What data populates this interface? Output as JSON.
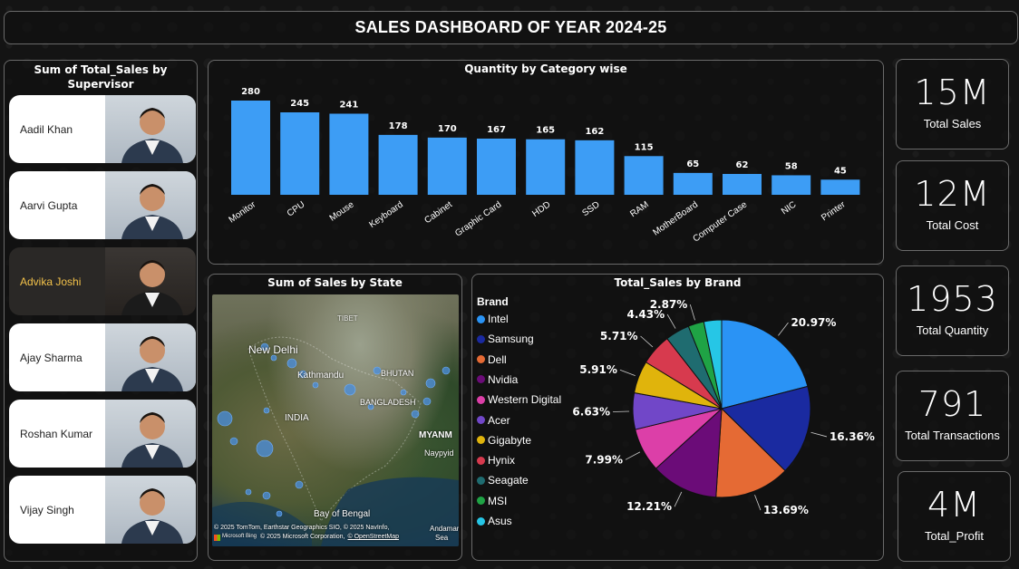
{
  "header": {
    "title": "SALES DASHBOARD OF YEAR 2024-25"
  },
  "supervisors": {
    "title": "Sum of Total_Sales by Supervisor",
    "items": [
      {
        "name": "Aadil Khan",
        "selected": false
      },
      {
        "name": "Aarvi Gupta",
        "selected": false
      },
      {
        "name": "Advika Joshi",
        "selected": true
      },
      {
        "name": "Ajay Sharma",
        "selected": false
      },
      {
        "name": "Roshan Kumar",
        "selected": false
      },
      {
        "name": "Vijay Singh",
        "selected": false
      }
    ]
  },
  "category_chart": {
    "title": "Quantity by Category wise",
    "bar_color": "#3d9df5"
  },
  "map": {
    "title": "Sum of Sales by State",
    "labels": {
      "tibet": "TIBET",
      "new_delhi": "New Delhi",
      "kathmandu": "Kathmandu",
      "bhutan": "BHUTAN",
      "bangladesh": "BANGLADESH",
      "india": "INDIA",
      "myanmar": "MYANM",
      "naypyida": "Naypyid",
      "bay": "Bay of Bengal",
      "andaman": "Andaman",
      "sea": "Sea"
    },
    "attribution_1": "© 2025 TomTom, Earthstar Geographics SIO, © 2025 NavInfo,",
    "attribution_2": "© 2025 Microsoft Corporation,",
    "attribution_link": "© OpenStreetMap",
    "microsoft_logo_text": "Microsoft Bing"
  },
  "brand_chart": {
    "title": "Total_Sales by Brand",
    "legend_title": "Brand"
  },
  "kpis": [
    {
      "value": "15M",
      "label": "Total Sales"
    },
    {
      "value": "12M",
      "label": "Total Cost"
    },
    {
      "value": "1953",
      "label": "Total Quantity"
    },
    {
      "value": "791",
      "label": "Total Transactions"
    },
    {
      "value": "4M",
      "label": "Total_Profit"
    }
  ],
  "chart_data": [
    {
      "type": "bar",
      "title": "Quantity by Category wise",
      "categories": [
        "Monitor",
        "CPU",
        "Mouse",
        "Keyboard",
        "Cabinet",
        "Graphic Card",
        "HDD",
        "SSD",
        "RAM",
        "MotherBoard",
        "Computer Case",
        "NIC",
        "Printer"
      ],
      "values": [
        280,
        245,
        241,
        178,
        170,
        167,
        165,
        162,
        115,
        65,
        62,
        58,
        45
      ],
      "data_labels": [
        "280",
        "245",
        "241",
        "178",
        "170",
        "167",
        "165",
        "162",
        "115",
        "65",
        "62",
        "58",
        "45"
      ],
      "ylim": [
        0,
        280
      ],
      "grid": false,
      "color": "#3d9df5"
    },
    {
      "type": "pie",
      "title": "Total_Sales by Brand",
      "legend_title": "Brand",
      "legend_position": "left",
      "series": [
        {
          "name": "Intel",
          "value": 20.97,
          "label": "20.97%",
          "color": "#2a93f5"
        },
        {
          "name": "Samsung",
          "value": 16.36,
          "label": "16.36%",
          "color": "#1a2aa0"
        },
        {
          "name": "Dell",
          "value": 13.69,
          "label": "13.69%",
          "color": "#e56a34"
        },
        {
          "name": "Nvidia",
          "value": 12.21,
          "label": "12.21%",
          "color": "#6b0c78"
        },
        {
          "name": "Western Digital",
          "value": 7.99,
          "label": "7.99%",
          "color": "#dc3fa8"
        },
        {
          "name": "Acer",
          "value": 6.63,
          "label": "6.63%",
          "color": "#7147c8"
        },
        {
          "name": "Gigabyte",
          "value": 5.91,
          "label": "5.91%",
          "color": "#e0b40c"
        },
        {
          "name": "Hynix",
          "value": 5.71,
          "label": "5.71%",
          "color": "#d73a4e"
        },
        {
          "name": "Seagate",
          "value": 4.43,
          "label": "4.43%",
          "color": "#1f6c70"
        },
        {
          "name": "MSI",
          "value": 2.87,
          "label": "2.87%",
          "color": "#1fa345"
        },
        {
          "name": "Asus",
          "value": 3.23,
          "label": "",
          "color": "#26c6e6"
        }
      ]
    }
  ]
}
